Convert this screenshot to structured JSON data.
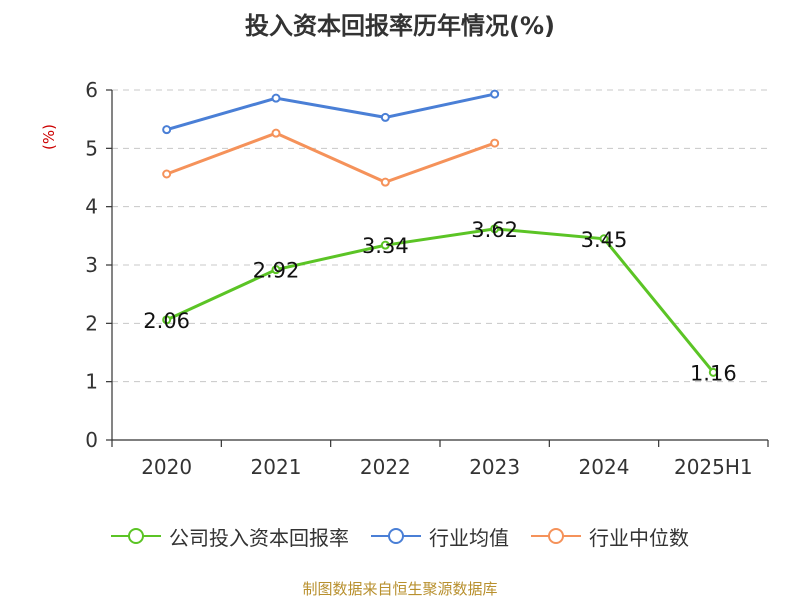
{
  "chart_data": {
    "type": "line",
    "title": "投入资本回报率历年情况(%)",
    "ylabel": "(%)",
    "xlabel": "",
    "categories": [
      "2020",
      "2021",
      "2022",
      "2023",
      "2024",
      "2025H1"
    ],
    "ylim": [
      0,
      6
    ],
    "yticks": [
      0,
      1,
      2,
      3,
      4,
      5,
      6
    ],
    "grid": true,
    "legend_position": "bottom",
    "series": [
      {
        "name": "公司投入资本回报率",
        "color": "#5bc425",
        "values": [
          2.06,
          2.92,
          3.34,
          3.62,
          3.45,
          1.16
        ],
        "labels": [
          "2.06",
          "2.92",
          "3.34",
          "3.62",
          "3.45",
          "1.16"
        ]
      },
      {
        "name": "行业均值",
        "color": "#4a7fd6",
        "values": [
          5.32,
          5.86,
          5.53,
          5.93,
          null,
          null
        ]
      },
      {
        "name": "行业中位数",
        "color": "#f5925a",
        "values": [
          4.56,
          5.26,
          4.42,
          5.09,
          null,
          null
        ]
      }
    ]
  },
  "source": "制图数据来自恒生聚源数据库"
}
